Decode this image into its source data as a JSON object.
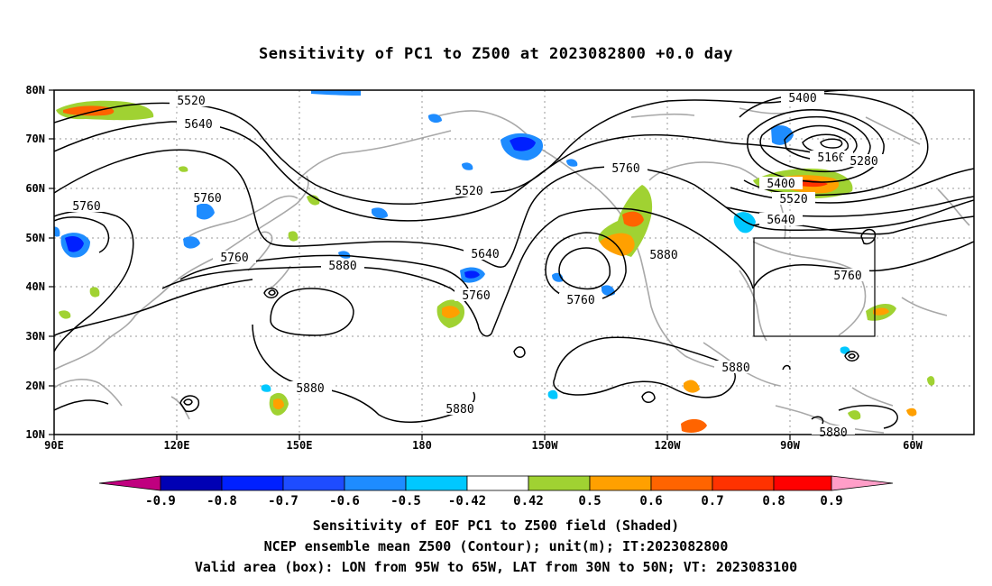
{
  "title": "Sensitivity of PC1 to Z500 at 2023082800 +0.0 day",
  "lat_labels": [
    "80N",
    "70N",
    "60N",
    "50N",
    "40N",
    "30N",
    "20N",
    "10N"
  ],
  "lon_labels": [
    "90E",
    "120E",
    "150E",
    "180",
    "150W",
    "120W",
    "90W",
    "60W"
  ],
  "contour_labels": [
    "5520",
    "5640",
    "5760",
    "5760",
    "5760",
    "5880",
    "5760",
    "5520",
    "5640",
    "5760",
    "5760",
    "5880",
    "5880",
    "5880",
    "5400",
    "5160",
    "5280",
    "5400",
    "5520",
    "5640",
    "5760",
    "5880",
    "5880",
    "5880"
  ],
  "colorbar": {
    "labels": [
      "-0.9",
      "-0.8",
      "-0.7",
      "-0.6",
      "-0.5",
      "-0.42",
      "0.42",
      "0.5",
      "0.6",
      "0.7",
      "0.8",
      "0.9"
    ],
    "colors": [
      "#c0007f",
      "#0000b4",
      "#0020ff",
      "#1e4cff",
      "#1e8cff",
      "#00c8ff",
      "#ffffff",
      "#a0d232",
      "#ffa000",
      "#ff6400",
      "#ff3200",
      "#ff0000",
      "#ff9ec8"
    ]
  },
  "captions": {
    "line1": "Sensitivity of EOF PC1 to Z500 field (Shaded)",
    "line2": "NCEP ensemble mean Z500 (Contour); unit(m); IT:2023082800",
    "line3": "Valid area (box): LON from 95W to 65W, LAT from 30N to 50N; VT: 2023083100"
  }
}
